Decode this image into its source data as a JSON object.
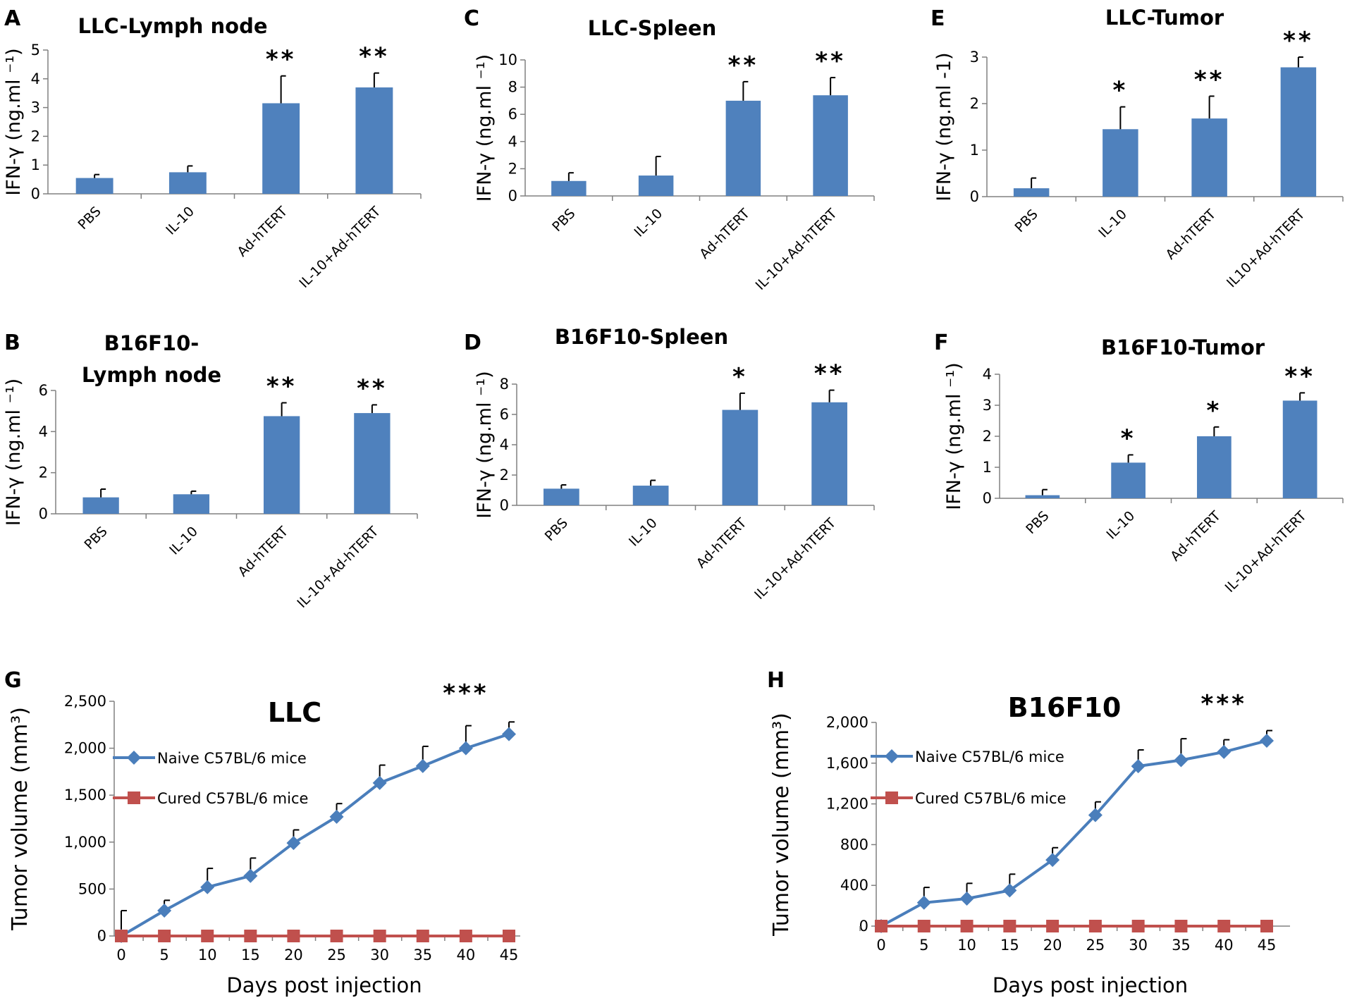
{
  "colors": {
    "bar": "#4f81bd",
    "naive": "#4a7ebb",
    "cured": "#c0504d",
    "axis": "#808080",
    "error": "#000000"
  },
  "chart_data": [
    {
      "id": "A",
      "type": "bar",
      "panel_letter": "A",
      "title_lines": [
        "LLC-Lymph node"
      ],
      "ylabel": "IFN-γ (ng.ml ⁻¹)",
      "categories": [
        "PBS",
        "IL-10",
        "Ad-hTERT",
        "IL-10+Ad-hTERT"
      ],
      "values": [
        0.55,
        0.75,
        3.15,
        3.7
      ],
      "errors": [
        0.12,
        0.22,
        0.95,
        0.5
      ],
      "significance": [
        "",
        "",
        "**",
        "**"
      ],
      "ylim": [
        0,
        5
      ],
      "yticks": [
        0,
        1,
        2,
        3,
        4,
        5
      ],
      "ytick_labels": [
        "0",
        "1",
        "2",
        "3",
        "4",
        "5"
      ]
    },
    {
      "id": "B",
      "type": "bar",
      "panel_letter": "B",
      "title_lines": [
        "B16F10-",
        "Lymph node"
      ],
      "ylabel": "IFN-γ (ng.ml ⁻¹)",
      "categories": [
        "PBS",
        "IL-10",
        "Ad-hTERT",
        "IL-10+Ad-hTERT"
      ],
      "values": [
        0.8,
        0.95,
        4.75,
        4.9
      ],
      "errors": [
        0.4,
        0.15,
        0.65,
        0.4
      ],
      "significance": [
        "",
        "",
        "**",
        "**"
      ],
      "ylim": [
        0,
        6
      ],
      "yticks": [
        0,
        2,
        4,
        6
      ],
      "ytick_labels": [
        "0",
        "2",
        "4",
        "6"
      ]
    },
    {
      "id": "C",
      "type": "bar",
      "panel_letter": "C",
      "title_lines": [
        "LLC-Spleen"
      ],
      "ylabel": "IFN-γ (ng.ml ⁻¹)",
      "categories": [
        "PBS",
        "IL-10",
        "Ad-hTERT",
        "IL-10+Ad-hTERT"
      ],
      "values": [
        1.1,
        1.5,
        7.0,
        7.4
      ],
      "errors": [
        0.6,
        1.4,
        1.4,
        1.3
      ],
      "significance": [
        "",
        "",
        "**",
        "**"
      ],
      "ylim": [
        0,
        10
      ],
      "yticks": [
        0,
        2,
        4,
        6,
        8,
        10
      ],
      "ytick_labels": [
        "0",
        "2",
        "4",
        "6",
        "8",
        "10"
      ]
    },
    {
      "id": "D",
      "type": "bar",
      "panel_letter": "D",
      "title_lines": [
        "B16F10-Spleen"
      ],
      "ylabel": "IFN-γ (ng.ml ⁻¹)",
      "categories": [
        "PBS",
        "IL-10",
        "Ad-hTERT",
        "IL-10+Ad-hTERT"
      ],
      "values": [
        1.1,
        1.3,
        6.3,
        6.8
      ],
      "errors": [
        0.25,
        0.35,
        1.1,
        0.8
      ],
      "significance": [
        "",
        "",
        "*",
        "**"
      ],
      "ylim": [
        0,
        8
      ],
      "yticks": [
        0,
        2,
        4,
        6,
        8
      ],
      "ytick_labels": [
        "0",
        "2",
        "4",
        "6",
        "8"
      ]
    },
    {
      "id": "E",
      "type": "bar",
      "panel_letter": "E",
      "title_lines": [
        "LLC-Tumor"
      ],
      "ylabel": "IFN-γ (ng.ml -1)",
      "categories": [
        "PBS",
        "IL-10",
        "Ad-hTERT",
        "IL10+Ad-hTERT"
      ],
      "values": [
        0.18,
        1.45,
        1.68,
        2.78
      ],
      "errors": [
        0.22,
        0.48,
        0.48,
        0.22
      ],
      "significance": [
        "",
        "*",
        "**",
        "**"
      ],
      "ylim": [
        0,
        3
      ],
      "yticks": [
        0,
        1,
        2,
        3
      ],
      "ytick_labels": [
        "0",
        "1",
        "2",
        "3"
      ]
    },
    {
      "id": "F",
      "type": "bar",
      "panel_letter": "F",
      "title_lines": [
        "B16F10-Tumor"
      ],
      "ylabel": "IFN-γ (ng.ml ⁻¹)",
      "categories": [
        "PBS",
        "IL-10",
        "Ad-hTERT",
        "IL-10+Ad-hTERT"
      ],
      "values": [
        0.1,
        1.15,
        2.0,
        3.15
      ],
      "errors": [
        0.18,
        0.25,
        0.3,
        0.25
      ],
      "significance": [
        "",
        "*",
        "*",
        "**"
      ],
      "ylim": [
        0,
        4
      ],
      "yticks": [
        0,
        1,
        2,
        3,
        4
      ],
      "ytick_labels": [
        "0",
        "1",
        "2",
        "3",
        "4"
      ]
    },
    {
      "id": "G",
      "type": "line",
      "panel_letter": "G",
      "title": "LLC",
      "xlabel": "Days post injection",
      "ylabel": "Tumor volume (mm³)",
      "x": [
        0,
        5,
        10,
        15,
        20,
        25,
        30,
        35,
        40,
        45
      ],
      "xlim": [
        0,
        45
      ],
      "ylim": [
        0,
        2500
      ],
      "yticks": [
        0,
        500,
        1000,
        1500,
        2000,
        2500
      ],
      "ytick_labels": [
        "0",
        "500",
        "1,000",
        "1,500",
        "2,000",
        "2,500"
      ],
      "significance": {
        "x": 40,
        "label": "***"
      },
      "series": [
        {
          "name": "Naive C57BL/6 mice",
          "marker": "diamond",
          "values": [
            0,
            270,
            520,
            640,
            990,
            1270,
            1630,
            1810,
            2000,
            2150
          ],
          "errors": [
            270,
            110,
            200,
            190,
            140,
            140,
            190,
            210,
            240,
            130
          ]
        },
        {
          "name": "Cured C57BL/6 mice",
          "marker": "square",
          "values": [
            0,
            0,
            0,
            0,
            0,
            0,
            0,
            0,
            0,
            0
          ],
          "errors": [
            0,
            0,
            0,
            0,
            0,
            0,
            0,
            0,
            0,
            0
          ]
        }
      ]
    },
    {
      "id": "H",
      "type": "line",
      "panel_letter": "H",
      "title": "B16F10",
      "xlabel": "Days post injection",
      "ylabel": "Tumor volume (mm³)",
      "x": [
        0,
        5,
        10,
        15,
        20,
        25,
        30,
        35,
        40,
        45
      ],
      "xlim": [
        0,
        45
      ],
      "ylim": [
        0,
        2000
      ],
      "yticks": [
        0,
        400,
        800,
        1200,
        1600,
        2000
      ],
      "ytick_labels": [
        "0",
        "400",
        "800",
        "1,200",
        "1,600",
        "2,000"
      ],
      "significance": {
        "x": 40,
        "label": "***"
      },
      "series": [
        {
          "name": "Naive C57BL/6 mice",
          "marker": "diamond",
          "values": [
            0,
            230,
            270,
            350,
            650,
            1090,
            1570,
            1630,
            1710,
            1820
          ],
          "errors": [
            40,
            150,
            150,
            160,
            120,
            130,
            160,
            210,
            120,
            100
          ]
        },
        {
          "name": "Cured C57BL/6 mice",
          "marker": "square",
          "values": [
            0,
            0,
            0,
            0,
            0,
            0,
            0,
            0,
            0,
            0
          ],
          "errors": [
            0,
            0,
            0,
            0,
            0,
            0,
            0,
            0,
            0,
            0
          ]
        }
      ]
    }
  ]
}
